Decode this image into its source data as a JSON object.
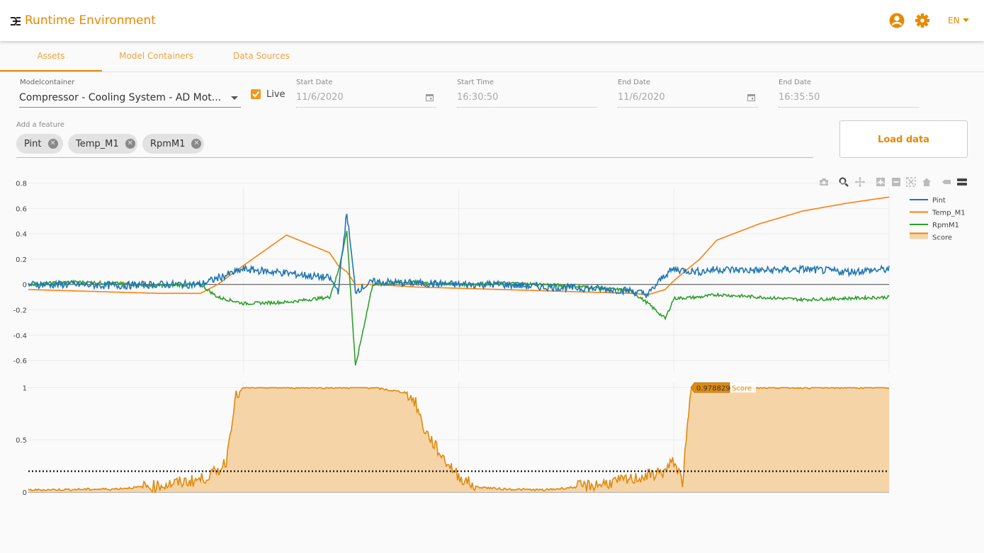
{
  "app": {
    "title": "Runtime Environment",
    "language": "EN"
  },
  "colors": {
    "accent": "#e68a00",
    "pint": "#1f77b4",
    "temp": "#ff7f0e",
    "rpm": "#2ca02c",
    "score_line": "#e08a0c",
    "score_fill": "#f5d4a8"
  },
  "tabs": [
    {
      "label": "Assets",
      "active": true
    },
    {
      "label": "Model Containers"
    },
    {
      "label": "Data Sources"
    }
  ],
  "form": {
    "modelcontainer_label": "Modelcontainer",
    "modelcontainer_value": "Compressor - Cooling System - AD Mot...",
    "live_label": "Live",
    "live_checked": true,
    "start_date_label": "Start Date",
    "start_date": "11/6/2020",
    "start_time_label": "Start Time",
    "start_time": "16:30:50",
    "end_date_label": "End Date",
    "end_date": "11/6/2020",
    "end_time_label": "End Date",
    "end_time": "16:35:50",
    "add_feature_label": "Add a feature",
    "features": [
      "Pint",
      "Temp_M1",
      "RpmM1"
    ],
    "load_button": "Load data"
  },
  "modebar": [
    "camera-icon",
    "zoom-icon",
    "pan-icon",
    "zoom-in-icon",
    "zoom-out-icon",
    "autoscale-icon",
    "home-icon",
    "spike-lines-icon",
    "compare-hover-icon"
  ],
  "chart_data": [
    {
      "type": "line",
      "ylim": [
        -0.7,
        0.82
      ],
      "yticks": [
        "0.8",
        "0.6",
        "0.4",
        "0.2",
        "0",
        "-0.2",
        "-0.4",
        "-0.6"
      ],
      "ytick_values": [
        0.8,
        0.6,
        0.4,
        0.2,
        0,
        -0.2,
        -0.4,
        -0.6
      ],
      "x": [
        0,
        0.05,
        0.1,
        0.15,
        0.2,
        0.22,
        0.25,
        0.3,
        0.35,
        0.36,
        0.37,
        0.38,
        0.4,
        0.45,
        0.5,
        0.55,
        0.6,
        0.65,
        0.7,
        0.72,
        0.74,
        0.75,
        0.78,
        0.8,
        0.85,
        0.9,
        0.95,
        1.0
      ],
      "series": [
        {
          "name": "Pint",
          "values": [
            0.0,
            0.0,
            -0.01,
            0.0,
            0.0,
            0.05,
            0.12,
            0.09,
            0.05,
            -0.05,
            0.57,
            -0.05,
            0.02,
            0.01,
            0.0,
            0.0,
            -0.02,
            -0.03,
            -0.05,
            -0.08,
            0.08,
            0.12,
            0.1,
            0.12,
            0.11,
            0.12,
            0.1,
            0.12
          ]
        },
        {
          "name": "Temp_M1",
          "values": [
            -0.04,
            -0.05,
            -0.06,
            -0.07,
            -0.07,
            0.0,
            0.15,
            0.39,
            0.25,
            0.15,
            0.1,
            0.0,
            0.0,
            -0.02,
            -0.03,
            -0.04,
            -0.05,
            -0.06,
            -0.07,
            -0.08,
            -0.04,
            0.03,
            0.2,
            0.35,
            0.48,
            0.58,
            0.64,
            0.69
          ]
        },
        {
          "name": "RpmM1",
          "values": [
            0.0,
            0.02,
            0.01,
            -0.01,
            0.0,
            -0.1,
            -0.15,
            -0.14,
            -0.1,
            0.1,
            0.42,
            -0.65,
            0.0,
            0.02,
            0.0,
            0.01,
            0.0,
            -0.02,
            -0.05,
            -0.15,
            -0.27,
            -0.11,
            -0.1,
            -0.08,
            -0.1,
            -0.12,
            -0.11,
            -0.1
          ]
        }
      ],
      "legend_position": "top-right"
    },
    {
      "type": "area",
      "name": "Score",
      "ylim": [
        0,
        1.05
      ],
      "yticks": [
        "1",
        "0.5",
        "0"
      ],
      "ytick_values": [
        1,
        0.5,
        0
      ],
      "threshold": 0.2,
      "x": [
        0,
        0.1,
        0.15,
        0.2,
        0.22,
        0.23,
        0.24,
        0.25,
        0.3,
        0.4,
        0.44,
        0.45,
        0.46,
        0.48,
        0.5,
        0.52,
        0.55,
        0.6,
        0.65,
        0.7,
        0.74,
        0.75,
        0.76,
        0.77,
        0.78,
        0.8,
        0.9,
        1.0
      ],
      "values": [
        0.02,
        0.03,
        0.06,
        0.12,
        0.2,
        0.3,
        0.9,
        1.0,
        1.0,
        1.0,
        0.95,
        0.85,
        0.6,
        0.35,
        0.15,
        0.05,
        0.03,
        0.02,
        0.06,
        0.12,
        0.2,
        0.3,
        0.1,
        0.98,
        1.0,
        1.0,
        1.0,
        1.0
      ],
      "hover_value": "0.978829",
      "hover_label": "Score"
    }
  ]
}
